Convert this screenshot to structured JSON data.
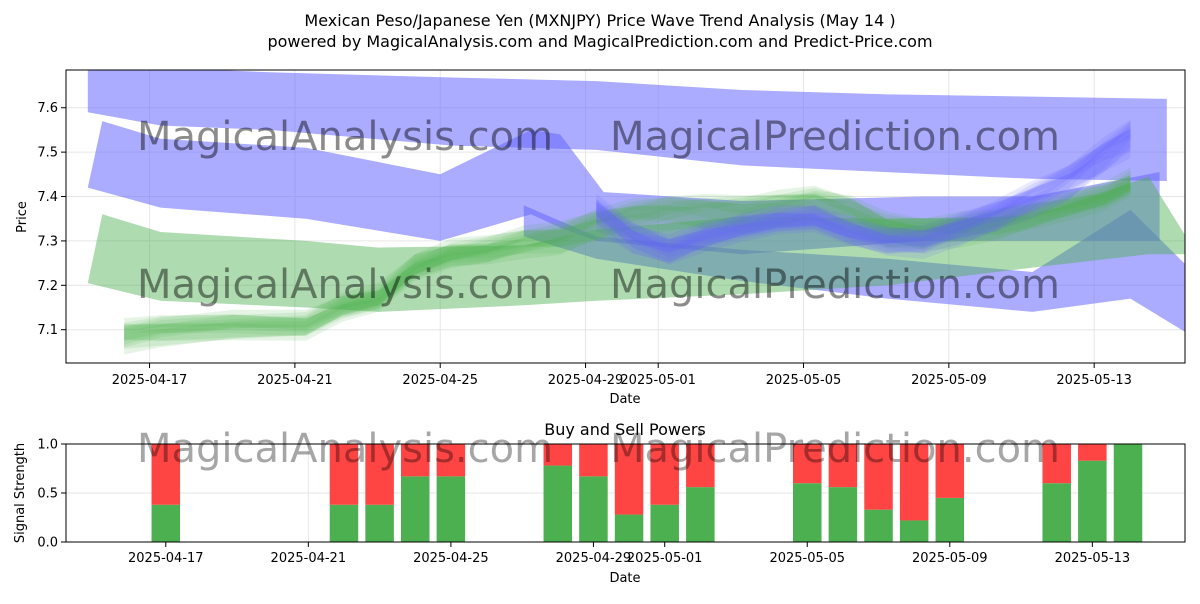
{
  "header": {
    "title": "Mexican Peso/Japanese Yen (MXNJPY) Price Wave Trend Analysis (May 14 )",
    "subtitle": "powered by MagicalAnalysis.com and MagicalPrediction.com and Predict-Price.com"
  },
  "watermarks": [
    "MagicalAnalysis.com",
    "MagicalPrediction.com"
  ],
  "colors": {
    "blue_band": "#6666ff",
    "green_band": "#4caf50",
    "buy": "#4caf50",
    "sell": "#ff4444",
    "grid": "#e6e6e6",
    "watermark": "#c8c8c8"
  },
  "chart_data": [
    {
      "type": "area",
      "title": "",
      "xlabel": "Date",
      "ylabel": "Price",
      "x_ticks": [
        "2025-04-17",
        "2025-04-21",
        "2025-04-25",
        "2025-04-29",
        "2025-05-01",
        "2025-05-05",
        "2025-05-09",
        "2025-05-13"
      ],
      "x_tick_days": [
        2,
        6,
        10,
        14,
        16,
        20,
        24,
        28
      ],
      "x_range_days": [
        -0.3,
        30.5
      ],
      "y_ticks": [
        7.1,
        7.2,
        7.3,
        7.4,
        7.5,
        7.6
      ],
      "ylim": [
        7.025,
        7.685
      ],
      "grid": true,
      "series": [
        {
          "name": "Upper blue band",
          "color": "blue",
          "upper": [
            [
              0.3,
              7.705
            ],
            [
              2.3,
              7.69
            ],
            [
              5.3,
              7.68
            ],
            [
              10.3,
              7.668
            ],
            [
              14.3,
              7.66
            ],
            [
              18.3,
              7.64
            ],
            [
              22.3,
              7.63
            ],
            [
              26.3,
              7.625
            ],
            [
              30.0,
              7.62
            ]
          ],
          "lower": [
            [
              0.3,
              7.59
            ],
            [
              2.3,
              7.56
            ],
            [
              5.3,
              7.55
            ],
            [
              10.3,
              7.515
            ],
            [
              14.3,
              7.505
            ],
            [
              18.3,
              7.47
            ],
            [
              22.3,
              7.455
            ],
            [
              26.3,
              7.44
            ],
            [
              30.0,
              7.435
            ]
          ]
        },
        {
          "name": "Middle blue band",
          "color": "blue",
          "upper": [
            [
              0.7,
              7.57
            ],
            [
              2.3,
              7.53
            ],
            [
              6.3,
              7.51
            ],
            [
              10.0,
              7.45
            ],
            [
              12.5,
              7.55
            ],
            [
              13.3,
              7.54
            ],
            [
              14.5,
              7.41
            ],
            [
              18.3,
              7.39
            ],
            [
              23.3,
              7.4
            ],
            [
              26.3,
              7.4
            ],
            [
              29.8,
              7.455
            ]
          ],
          "lower": [
            [
              0.3,
              7.42
            ],
            [
              2.3,
              7.375
            ],
            [
              6.3,
              7.35
            ],
            [
              10.0,
              7.3
            ],
            [
              12.5,
              7.36
            ],
            [
              13.3,
              7.33
            ],
            [
              14.3,
              7.3
            ],
            [
              18.3,
              7.27
            ],
            [
              23.3,
              7.3
            ],
            [
              26.3,
              7.3
            ],
            [
              29.8,
              7.3
            ]
          ]
        },
        {
          "name": "Lower blue band",
          "color": "blue",
          "upper": [
            [
              12.3,
              7.38
            ],
            [
              14.3,
              7.31
            ],
            [
              18.3,
              7.28
            ],
            [
              22.3,
              7.26
            ],
            [
              26.3,
              7.23
            ],
            [
              29.0,
              7.37
            ],
            [
              30.6,
              7.24
            ]
          ],
          "lower": [
            [
              12.3,
              7.31
            ],
            [
              14.3,
              7.26
            ],
            [
              18.3,
              7.21
            ],
            [
              22.3,
              7.17
            ],
            [
              26.3,
              7.14
            ],
            [
              29.0,
              7.17
            ],
            [
              30.6,
              7.09
            ]
          ]
        },
        {
          "name": "Wide green band",
          "color": "green",
          "upper": [
            [
              0.7,
              7.36
            ],
            [
              2.3,
              7.32
            ],
            [
              6.3,
              7.3
            ],
            [
              8.3,
              7.285
            ],
            [
              12.3,
              7.29
            ],
            [
              14.3,
              7.325
            ],
            [
              18.3,
              7.355
            ],
            [
              22.3,
              7.35
            ],
            [
              26.3,
              7.355
            ],
            [
              29.5,
              7.445
            ],
            [
              30.6,
              7.3
            ]
          ],
          "lower": [
            [
              0.3,
              7.205
            ],
            [
              2.3,
              7.165
            ],
            [
              6.3,
              7.15
            ],
            [
              8.3,
              7.14
            ],
            [
              12.3,
              7.155
            ],
            [
              14.3,
              7.165
            ],
            [
              18.3,
              7.18
            ],
            [
              22.3,
              7.2
            ],
            [
              26.3,
              7.24
            ],
            [
              29.5,
              7.27
            ],
            [
              30.6,
              7.27
            ]
          ]
        },
        {
          "name": "Green wave cluster",
          "color": "green",
          "center": [
            [
              1.3,
              7.09
            ],
            [
              2.3,
              7.1
            ],
            [
              4.3,
              7.11
            ],
            [
              6.3,
              7.11
            ],
            [
              7.3,
              7.15
            ],
            [
              8.3,
              7.17
            ],
            [
              9.3,
              7.24
            ],
            [
              10.3,
              7.27
            ],
            [
              11.3,
              7.28
            ],
            [
              12.3,
              7.3
            ],
            [
              13.3,
              7.31
            ],
            [
              14.3,
              7.34
            ],
            [
              15.3,
              7.36
            ],
            [
              16.3,
              7.37
            ],
            [
              17.3,
              7.37
            ],
            [
              18.3,
              7.37
            ],
            [
              19.3,
              7.38
            ],
            [
              20.3,
              7.39
            ],
            [
              21.3,
              7.37
            ],
            [
              22.3,
              7.33
            ],
            [
              23.3,
              7.32
            ],
            [
              24.3,
              7.33
            ],
            [
              25.3,
              7.34
            ],
            [
              26.3,
              7.36
            ],
            [
              27.3,
              7.38
            ],
            [
              28.3,
              7.4
            ],
            [
              29.0,
              7.43
            ]
          ]
        },
        {
          "name": "Blue wave cluster",
          "color": "blue",
          "center": [
            [
              14.3,
              7.37
            ],
            [
              15.3,
              7.31
            ],
            [
              16.3,
              7.28
            ],
            [
              17.3,
              7.31
            ],
            [
              18.3,
              7.33
            ],
            [
              19.3,
              7.345
            ],
            [
              20.3,
              7.35
            ],
            [
              21.3,
              7.32
            ],
            [
              22.3,
              7.3
            ],
            [
              23.3,
              7.3
            ],
            [
              24.3,
              7.33
            ],
            [
              25.3,
              7.36
            ],
            [
              26.3,
              7.4
            ],
            [
              27.3,
              7.44
            ],
            [
              28.3,
              7.5
            ],
            [
              29.0,
              7.54
            ]
          ]
        }
      ]
    },
    {
      "type": "bar",
      "title": "Buy and Sell Powers",
      "xlabel": "Date",
      "ylabel": "Signal Strength",
      "ylim": [
        0,
        1
      ],
      "y_ticks": [
        "0.0",
        "0.5",
        "1.0"
      ],
      "x_ticks": [
        "2025-04-17",
        "2025-04-21",
        "2025-04-25",
        "2025-04-29",
        "2025-05-01",
        "2025-05-05",
        "2025-05-09",
        "2025-05-13"
      ],
      "x_tick_days": [
        2,
        6,
        10,
        14,
        16,
        20,
        24,
        28
      ],
      "x_range_days": [
        -0.8,
        30.6
      ],
      "grid": true,
      "series": [
        {
          "name": "Buy",
          "color": "green"
        },
        {
          "name": "Sell",
          "color": "red"
        }
      ],
      "bars": [
        {
          "day": 2,
          "buy": 0.38
        },
        {
          "day": 7,
          "buy": 0.38
        },
        {
          "day": 8,
          "buy": 0.38
        },
        {
          "day": 9,
          "buy": 0.67
        },
        {
          "day": 10,
          "buy": 0.67
        },
        {
          "day": 13,
          "buy": 0.78
        },
        {
          "day": 14,
          "buy": 0.67
        },
        {
          "day": 15,
          "buy": 0.28
        },
        {
          "day": 16,
          "buy": 0.38
        },
        {
          "day": 17,
          "buy": 0.56
        },
        {
          "day": 20,
          "buy": 0.6
        },
        {
          "day": 21,
          "buy": 0.56
        },
        {
          "day": 22,
          "buy": 0.33
        },
        {
          "day": 23,
          "buy": 0.22
        },
        {
          "day": 24,
          "buy": 0.45
        },
        {
          "day": 27,
          "buy": 0.6
        },
        {
          "day": 28,
          "buy": 0.83
        },
        {
          "day": 29,
          "buy": 1.0
        }
      ]
    }
  ]
}
